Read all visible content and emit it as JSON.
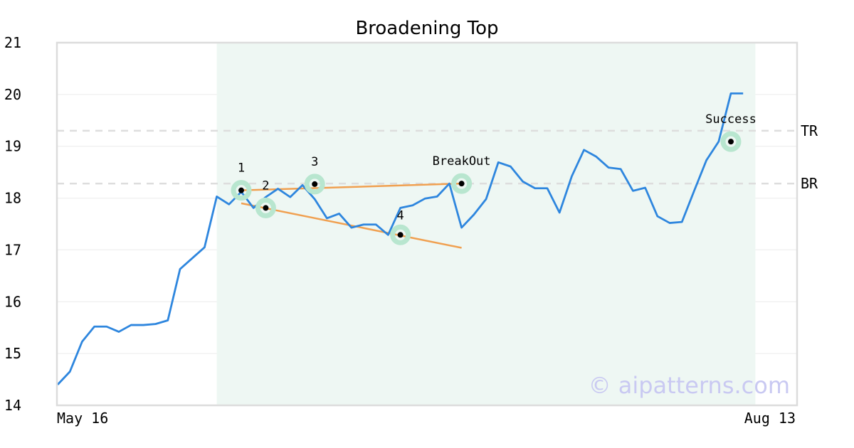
{
  "chart_data": {
    "type": "line",
    "title": "Broadening Top",
    "x_start_label": "May 16",
    "x_end_label": "Aug 13",
    "ylim": [
      14,
      21
    ],
    "yticks": [
      14,
      15,
      16,
      17,
      18,
      19,
      20,
      21
    ],
    "grid": true,
    "series": [
      {
        "color": "#2e86de",
        "values": [
          14.4,
          14.65,
          15.23,
          15.52,
          15.52,
          15.42,
          15.55,
          15.55,
          15.57,
          15.64,
          16.63,
          16.84,
          17.05,
          18.03,
          17.88,
          18.12,
          17.81,
          18.02,
          18.18,
          18.02,
          18.25,
          17.98,
          17.61,
          17.7,
          17.43,
          17.49,
          17.49,
          17.29,
          17.81,
          17.86,
          17.99,
          18.03,
          18.28,
          17.43,
          17.68,
          17.98,
          18.69,
          18.61,
          18.32,
          18.19,
          18.19,
          17.72,
          18.42,
          18.93,
          18.8,
          18.59,
          18.56,
          18.14,
          18.2,
          17.65,
          17.52,
          17.54,
          18.14,
          18.73,
          19.09,
          20.02,
          20.02
        ]
      }
    ],
    "pattern_region": {
      "start_index": 13,
      "end_index": 57
    },
    "levels": [
      {
        "label": "TR",
        "value": 19.3
      },
      {
        "label": "BR",
        "value": 18.28
      }
    ],
    "trend_lines": [
      {
        "from": [
          15,
          18.15
        ],
        "to": [
          33,
          18.28
        ],
        "color": "#f0a050"
      },
      {
        "from": [
          15,
          17.9
        ],
        "to": [
          33,
          17.04
        ],
        "color": "#f0a050"
      }
    ],
    "points": [
      {
        "label": "1",
        "index": 15,
        "value": 18.15
      },
      {
        "label": "2",
        "index": 17,
        "value": 17.81
      },
      {
        "label": "3",
        "index": 21,
        "value": 18.27
      },
      {
        "label": "4",
        "index": 28,
        "value": 17.29
      },
      {
        "label": "BreakOut",
        "index": 33,
        "value": 18.28
      },
      {
        "label": "Success",
        "index": 55,
        "value": 19.09
      }
    ],
    "watermark": "© aipatterns.com"
  }
}
